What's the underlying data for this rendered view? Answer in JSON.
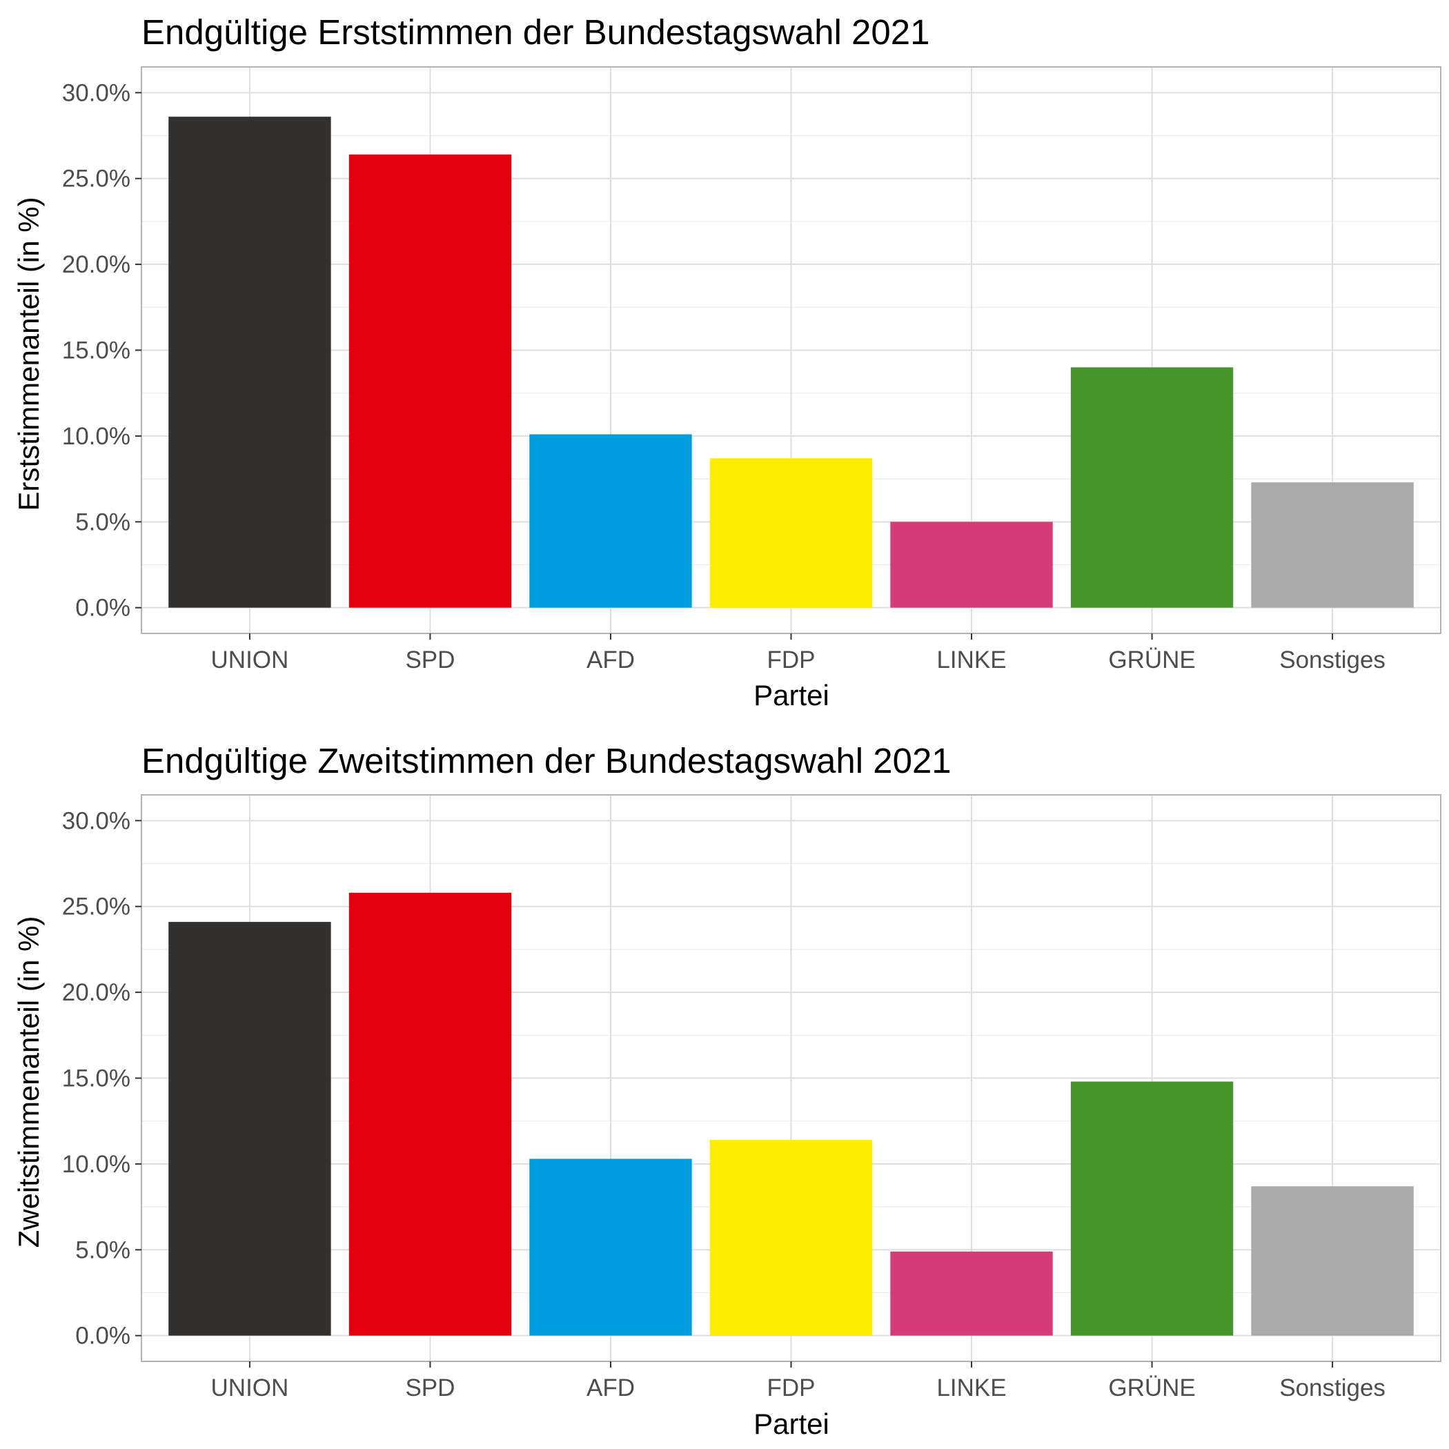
{
  "chart_data": [
    {
      "type": "bar",
      "title": "Endgültige Erststimmen der Bundestagswahl 2021",
      "xlabel": "Partei",
      "ylabel": "Erststimmenanteil (in %)",
      "categories": [
        "UNION",
        "SPD",
        "AFD",
        "FDP",
        "LINKE",
        "GRÜNE",
        "Sonstiges"
      ],
      "values": [
        28.6,
        26.4,
        10.1,
        8.7,
        5.0,
        14.0,
        7.3
      ],
      "colors": [
        "#32312f",
        "#e3000f",
        "#009ee0",
        "#ffed00",
        "#d33c75",
        "#46962b",
        "#aaaaaa"
      ],
      "ylim": [
        -1.5,
        31.5
      ],
      "yticks": [
        0,
        5,
        10,
        15,
        20,
        25,
        30
      ],
      "ytick_labels": [
        "0.0%",
        "5.0%",
        "10.0%",
        "15.0%",
        "20.0%",
        "25.0%",
        "30.0%"
      ],
      "grid": true
    },
    {
      "type": "bar",
      "title": "Endgültige Zweitstimmen der Bundestagswahl 2021",
      "xlabel": "Partei",
      "ylabel": "Zweitstimmenanteil (in %)",
      "categories": [
        "UNION",
        "SPD",
        "AFD",
        "FDP",
        "LINKE",
        "GRÜNE",
        "Sonstiges"
      ],
      "values": [
        24.1,
        25.8,
        10.3,
        11.4,
        4.9,
        14.8,
        8.7
      ],
      "colors": [
        "#32312f",
        "#e3000f",
        "#009ee0",
        "#ffed00",
        "#d33c75",
        "#46962b",
        "#aaaaaa"
      ],
      "ylim": [
        -1.5,
        31.5
      ],
      "yticks": [
        0,
        5,
        10,
        15,
        20,
        25,
        30
      ],
      "ytick_labels": [
        "0.0%",
        "5.0%",
        "10.0%",
        "15.0%",
        "20.0%",
        "25.0%",
        "30.0%"
      ],
      "grid": true
    }
  ]
}
